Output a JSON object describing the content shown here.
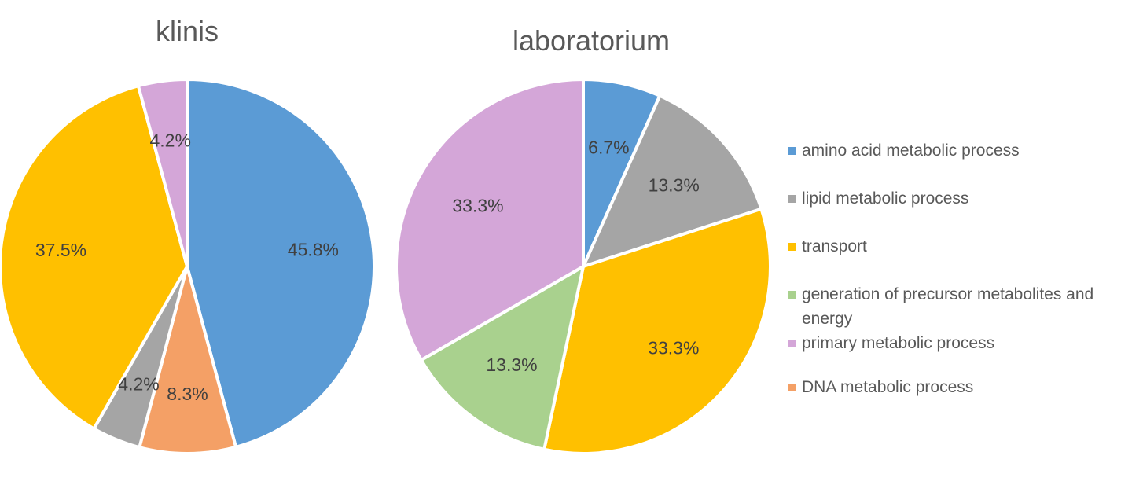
{
  "chart_data": [
    {
      "type": "pie",
      "title": "klinis",
      "categories": [
        "amino acid metabolic process",
        "DNA metabolic process",
        "lipid metabolic process",
        "transport",
        "primary metabolic process"
      ],
      "values": [
        45.8,
        8.3,
        4.2,
        37.5,
        4.2
      ],
      "labels": [
        "45.8%",
        "8.3%",
        "4.2%",
        "37.5%",
        "4.2%"
      ],
      "colors": [
        "#5B9BD5",
        "#F4A066",
        "#A5A5A5",
        "#FFC000",
        "#D4A6D8"
      ]
    },
    {
      "type": "pie",
      "title": "laboratorium",
      "categories": [
        "amino acid metabolic process",
        "lipid metabolic process",
        "transport",
        "generation of precursor metabolites and energy",
        "primary metabolic process"
      ],
      "values": [
        6.7,
        13.3,
        33.3,
        13.3,
        33.3
      ],
      "labels": [
        "6.7%",
        "13.3%",
        "33.3%",
        "13.3%",
        "33.3%"
      ],
      "colors": [
        "#5B9BD5",
        "#A5A5A5",
        "#FFC000",
        "#A9D18E",
        "#D4A6D8"
      ]
    }
  ],
  "legend": {
    "placement": "right",
    "items": [
      {
        "label": "amino acid metabolic process",
        "color": "#5B9BD5"
      },
      {
        "label": "lipid metabolic process",
        "color": "#A5A5A5"
      },
      {
        "label": "transport",
        "color": "#FFC000"
      },
      {
        "label": "generation of precursor metabolites and energy",
        "color": "#A9D18E"
      },
      {
        "label": "primary metabolic process",
        "color": "#D4A6D8"
      },
      {
        "label": "DNA metabolic process",
        "color": "#F4A066"
      }
    ]
  }
}
